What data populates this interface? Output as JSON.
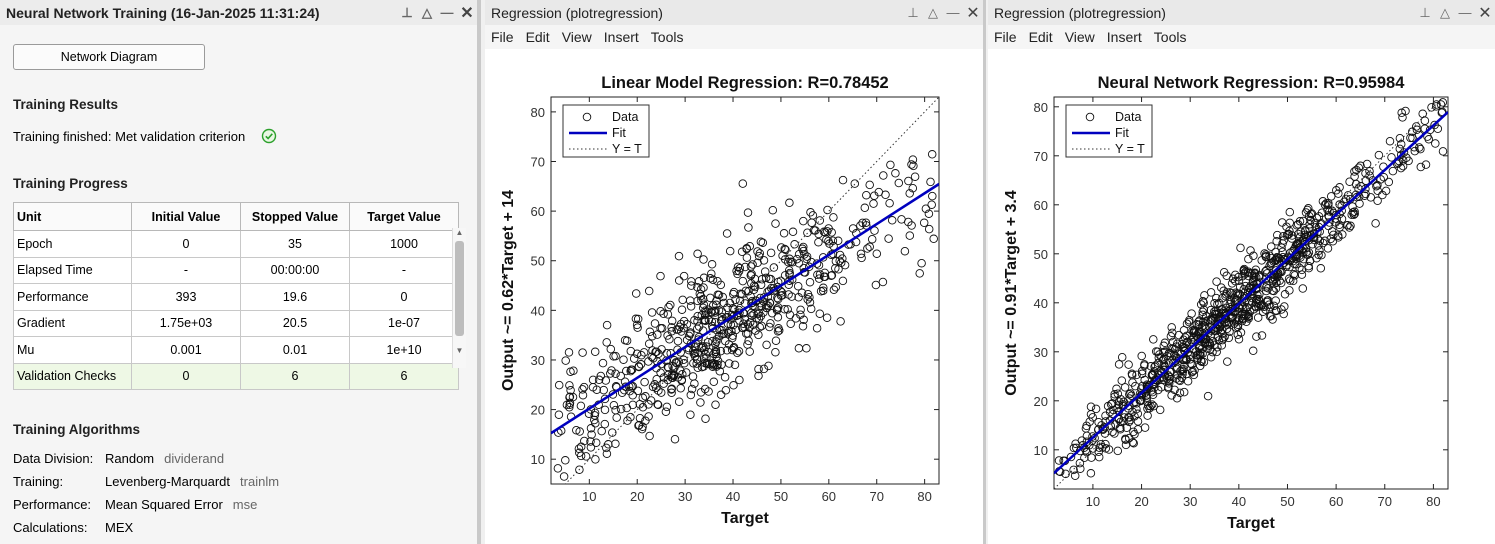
{
  "left_window": {
    "title": "Neural Network Training (16-Jan-2025 11:31:24)",
    "network_diagram_button": "Network Diagram",
    "results_heading": "Training Results",
    "results_text": "Training finished: Met validation criterion",
    "progress_heading": "Training Progress",
    "table": {
      "headers": [
        "Unit",
        "Initial Value",
        "Stopped Value",
        "Target Value"
      ],
      "rows": [
        [
          "Epoch",
          "0",
          "35",
          "1000"
        ],
        [
          "Elapsed Time",
          "-",
          "00:00:00",
          "-"
        ],
        [
          "Performance",
          "393",
          "19.6",
          "0"
        ],
        [
          "Gradient",
          "1.75e+03",
          "20.5",
          "1e-07"
        ],
        [
          "Mu",
          "0.001",
          "0.01",
          "1e+10"
        ],
        [
          "Validation Checks",
          "0",
          "6",
          "6"
        ]
      ]
    },
    "algorithms_heading": "Training Algorithms",
    "algorithms": [
      {
        "key": "Data Division:",
        "value": "Random",
        "fn": "dividerand"
      },
      {
        "key": "Training:",
        "value": "Levenberg-Marquardt",
        "fn": "trainlm"
      },
      {
        "key": "Performance:",
        "value": "Mean Squared Error",
        "fn": "mse"
      },
      {
        "key": "Calculations:",
        "value": "MEX",
        "fn": ""
      }
    ],
    "colors": {
      "success": "#2ca02c",
      "highlight_row": "#eef8e5"
    }
  },
  "figure_window_title": "Regression (plotregression)",
  "menu": [
    "File",
    "Edit",
    "View",
    "Insert",
    "Tools"
  ],
  "legend": [
    "Data",
    "Fit",
    "Y = T"
  ],
  "chart_data": [
    {
      "type": "scatter",
      "title": "Linear Model Regression: R=0.78452",
      "xlabel": "Target",
      "ylabel": "Output ~= 0.62*Target + 14",
      "xlim": [
        2,
        83
      ],
      "ylim": [
        5,
        83
      ],
      "xticks": [
        10,
        20,
        30,
        40,
        50,
        60,
        70,
        80
      ],
      "yticks": [
        10,
        20,
        30,
        40,
        50,
        60,
        70,
        80
      ],
      "fit": {
        "slope": 0.62,
        "intercept": 14,
        "color": "#0000bf"
      },
      "points_summary": {
        "count": 700,
        "r": 0.78452,
        "x_range": [
          3,
          82
        ]
      },
      "legend_position": "top-left",
      "grid": false
    },
    {
      "type": "scatter",
      "title": "Neural Network Regression: R=0.95984",
      "xlabel": "Target",
      "ylabel": "Output ~= 0.91*Target + 3.4",
      "xlim": [
        2,
        83
      ],
      "ylim": [
        2,
        82
      ],
      "xticks": [
        10,
        20,
        30,
        40,
        50,
        60,
        70,
        80
      ],
      "yticks": [
        10,
        20,
        30,
        40,
        50,
        60,
        70,
        80
      ],
      "fit": {
        "slope": 0.91,
        "intercept": 3.4,
        "color": "#0000bf"
      },
      "points_summary": {
        "count": 900,
        "r": 0.95984,
        "x_range": [
          3,
          82
        ]
      },
      "legend_position": "top-left",
      "grid": false
    }
  ]
}
